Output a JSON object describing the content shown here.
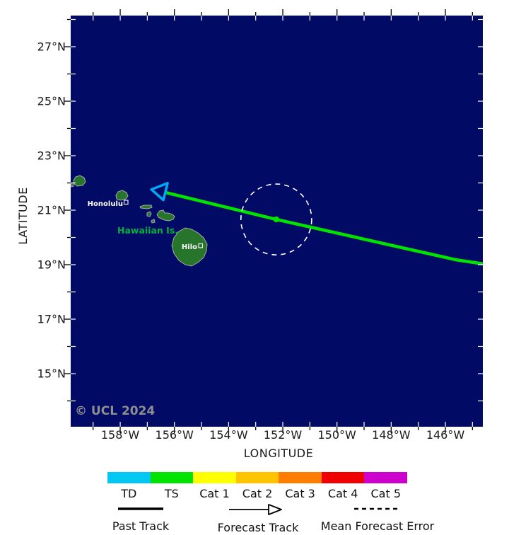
{
  "map": {
    "watermark": "© UCL 2024",
    "ocean_color": "#010a64",
    "island_fill": "#27752a",
    "island_stroke": "#a8a8a8",
    "region_label": "Hawaiian Is.",
    "region_label_color": "#00b23c",
    "cities": [
      {
        "name": "Honolulu"
      },
      {
        "name": "Hilo"
      }
    ]
  },
  "axes": {
    "y_title": "LATITUDE",
    "x_title": "LONGITUDE",
    "lat_tick_labels": [
      {
        "label": "27°N",
        "deg_n": 27
      },
      {
        "label": "25°N",
        "deg_n": 25
      },
      {
        "label": "23°N",
        "deg_n": 23
      },
      {
        "label": "21°N",
        "deg_n": 21
      },
      {
        "label": "19°N",
        "deg_n": 19
      },
      {
        "label": "17°N",
        "deg_n": 17
      },
      {
        "label": "15°N",
        "deg_n": 15
      }
    ],
    "lon_tick_labels": [
      {
        "label": "158°W",
        "deg_w": 158
      },
      {
        "label": "156°W",
        "deg_w": 156
      },
      {
        "label": "154°W",
        "deg_w": 154
      },
      {
        "label": "152°W",
        "deg_w": 152
      },
      {
        "label": "150°W",
        "deg_w": 150
      },
      {
        "label": "148°W",
        "deg_w": 148
      },
      {
        "label": "146°W",
        "deg_w": 146
      }
    ],
    "lat_range_deg_n": [
      13.0,
      28.1
    ],
    "lon_range_deg_w": [
      159.8,
      144.6
    ]
  },
  "storm": {
    "forecast_track_color": "#00e400",
    "arrowhead_color": "#00a8f5",
    "error_circle_color": "#ffffff",
    "track_points_lon_w_lat_n": [
      [
        144.62,
        19.03
      ],
      [
        145.61,
        19.18
      ],
      [
        152.24,
        20.66
      ],
      [
        156.33,
        21.65
      ]
    ],
    "forecast_position": {
      "lon_w": 152.24,
      "lat_n": 20.66
    },
    "error_circle_radius_deg": 1.3,
    "arrow_tip_lon_w_lat_n": [
      156.85,
      21.76
    ]
  },
  "legend": {
    "categories": [
      {
        "label": "TD",
        "color": "#00c8f2"
      },
      {
        "label": "TS",
        "color": "#00e400"
      },
      {
        "label": "Cat 1",
        "color": "#ffff00"
      },
      {
        "label": "Cat 2",
        "color": "#ffc400"
      },
      {
        "label": "Cat 3",
        "color": "#ff7d00"
      },
      {
        "label": "Cat 4",
        "color": "#f00000"
      },
      {
        "label": "Cat 5",
        "color": "#cd00cd"
      }
    ],
    "items": {
      "past_track": "Past Track",
      "forecast_track": "Forecast Track",
      "mean_forecast_error": "Mean Forecast Error"
    }
  }
}
